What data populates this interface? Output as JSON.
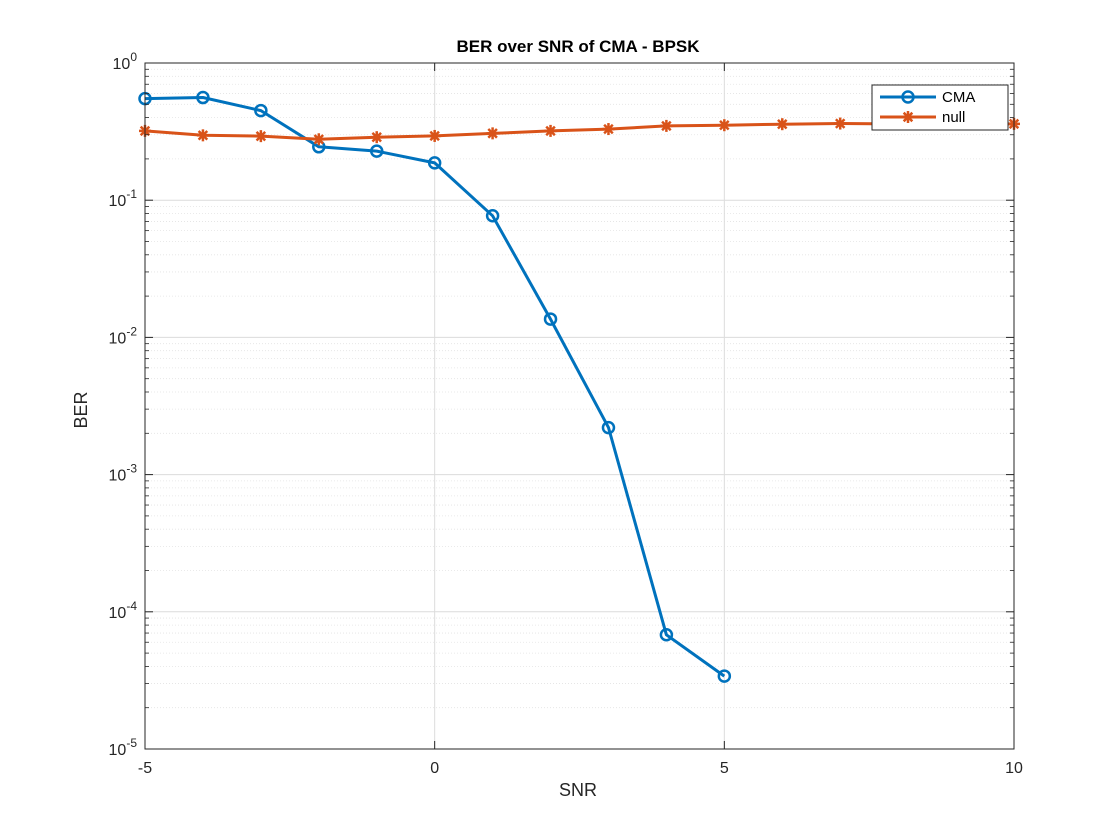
{
  "chart_data": {
    "type": "line",
    "title": "BER over SNR of CMA - BPSK",
    "xlabel": "SNR",
    "ylabel": "BER",
    "xlim": [
      -5,
      10
    ],
    "ylim": [
      1e-05,
      1
    ],
    "yscale": "log",
    "grid": true,
    "minor_grid": true,
    "legend_position": "top-right",
    "x_ticks": [
      {
        "value": -5,
        "label": "-5"
      },
      {
        "value": 0,
        "label": "0"
      },
      {
        "value": 5,
        "label": "5"
      },
      {
        "value": 10,
        "label": "10"
      }
    ],
    "y_ticks": [
      {
        "value": 1,
        "base": "10",
        "exp": "0"
      },
      {
        "value": 0.1,
        "base": "10",
        "exp": "-1"
      },
      {
        "value": 0.01,
        "base": "10",
        "exp": "-2"
      },
      {
        "value": 0.001,
        "base": "10",
        "exp": "-3"
      },
      {
        "value": 0.0001,
        "base": "10",
        "exp": "-4"
      },
      {
        "value": 1e-05,
        "base": "10",
        "exp": "-5"
      }
    ],
    "series": [
      {
        "name": "CMA",
        "color": "#0072BD",
        "marker": "circle",
        "x": [
          -5,
          -4,
          -3,
          -2,
          -1,
          0,
          1,
          2,
          3,
          4,
          5
        ],
        "y": [
          0.55,
          0.56,
          0.45,
          0.245,
          0.228,
          0.187,
          0.077,
          0.0136,
          0.0022,
          6.8e-05,
          3.4e-05
        ]
      },
      {
        "name": "null",
        "color": "#D95319",
        "marker": "asterisk",
        "x": [
          -5,
          -4,
          -3,
          -2,
          -1,
          0,
          1,
          2,
          3,
          4,
          5,
          6,
          7,
          8,
          9,
          10
        ],
        "y": [
          0.32,
          0.297,
          0.293,
          0.278,
          0.288,
          0.294,
          0.307,
          0.32,
          0.33,
          0.348,
          0.352,
          0.358,
          0.362,
          0.36,
          0.358,
          0.36
        ]
      }
    ]
  }
}
